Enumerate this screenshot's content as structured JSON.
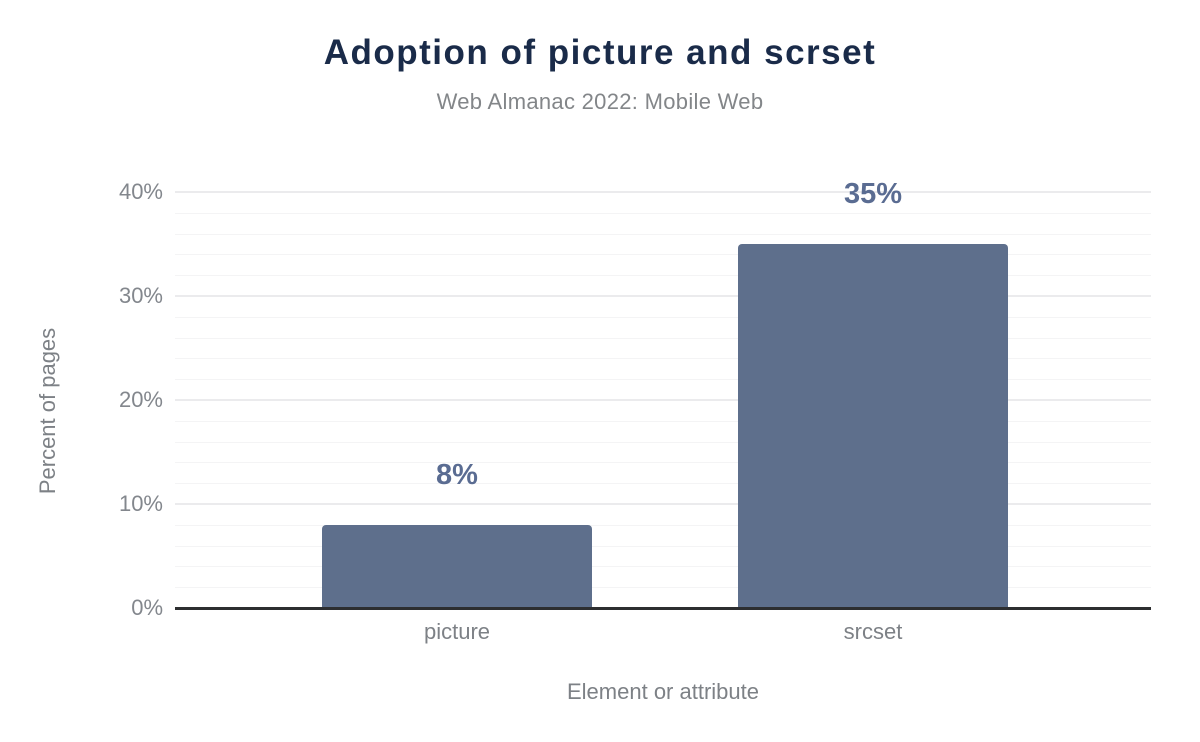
{
  "chart_data": {
    "type": "bar",
    "title": "Adoption of picture and scrset",
    "subtitle": "Web Almanac 2022: Mobile Web",
    "categories": [
      "picture",
      "srcset"
    ],
    "values": [
      8,
      35
    ],
    "value_labels": [
      "8%",
      "35%"
    ],
    "xlabel": "Element or attribute",
    "ylabel": "Percent of pages",
    "ylim": [
      0,
      40
    ],
    "ytick_labels": [
      "0%",
      "10%",
      "20%",
      "30%",
      "40%"
    ],
    "ytick_major_step": 10,
    "ytick_minor_step": 2,
    "grid": "on",
    "legend": "none",
    "colors": {
      "bar": "#5e6f8c",
      "value_label": "#5a6c92",
      "title": "#1a2b49",
      "subtitle": "#838689",
      "tick_label": "#83878d",
      "axis_line": "#2d2e30",
      "grid_major": "#ebebed",
      "grid_minor": "#f4f4f5",
      "background": "#ffffff"
    }
  }
}
